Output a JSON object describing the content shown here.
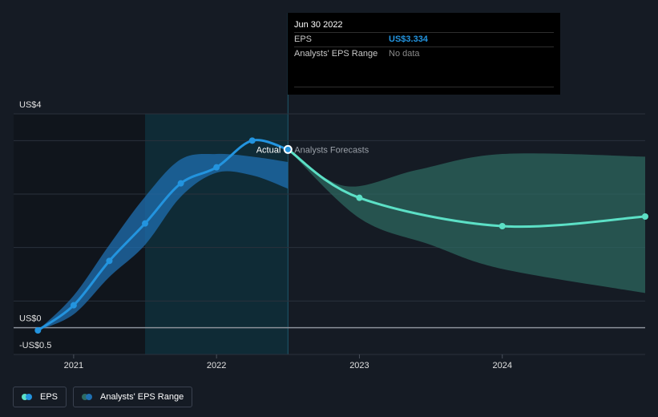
{
  "chart_data": {
    "type": "line",
    "y_ticks": [
      {
        "value": 4,
        "label": "US$4"
      },
      {
        "value": 0,
        "label": "US$0"
      },
      {
        "value": -0.5,
        "label": "-US$0.5"
      }
    ],
    "ylim": [
      -0.5,
      4
    ],
    "x_ticks": [
      {
        "value": 2021.0,
        "label": "2021"
      },
      {
        "value": 2022.0,
        "label": "2022"
      },
      {
        "value": 2023.0,
        "label": "2023"
      },
      {
        "value": 2024.0,
        "label": "2024"
      }
    ],
    "xlim": [
      2020.58,
      2025.0
    ],
    "shaded_periods": [
      {
        "name": "past",
        "from": 2020.58,
        "to": 2021.5
      },
      {
        "name": "recent",
        "from": 2021.5,
        "to": 2022.5
      }
    ],
    "split_label_actual": "Actual",
    "split_label_forecast": "Analysts Forecasts",
    "series": [
      {
        "name": "EPS",
        "color": "#2394df",
        "points": [
          {
            "x": 2020.75,
            "y": -0.05
          },
          {
            "x": 2021.0,
            "y": 0.42
          },
          {
            "x": 2021.25,
            "y": 1.25
          },
          {
            "x": 2021.5,
            "y": 1.95
          },
          {
            "x": 2021.75,
            "y": 2.7
          },
          {
            "x": 2022.0,
            "y": 3.0
          },
          {
            "x": 2022.25,
            "y": 3.5
          },
          {
            "x": 2022.5,
            "y": 3.334
          }
        ]
      },
      {
        "name": "EPS forecast",
        "color": "#5ce0c6",
        "points": [
          {
            "x": 2022.5,
            "y": 3.334
          },
          {
            "x": 2023.0,
            "y": 2.43
          },
          {
            "x": 2024.0,
            "y": 1.9
          },
          {
            "x": 2025.0,
            "y": 2.08
          }
        ]
      }
    ],
    "ranges": [
      {
        "name": "Analysts' EPS Range (past)",
        "color": "#1f6fb0",
        "upper": [
          {
            "x": 2020.75,
            "y": -0.05
          },
          {
            "x": 2021.0,
            "y": 0.6
          },
          {
            "x": 2021.25,
            "y": 1.55
          },
          {
            "x": 2021.5,
            "y": 2.45
          },
          {
            "x": 2021.75,
            "y": 3.15
          },
          {
            "x": 2022.0,
            "y": 3.25
          },
          {
            "x": 2022.25,
            "y": 3.2
          },
          {
            "x": 2022.5,
            "y": 3.1
          }
        ],
        "lower": [
          {
            "x": 2020.75,
            "y": -0.05
          },
          {
            "x": 2021.0,
            "y": 0.25
          },
          {
            "x": 2021.25,
            "y": 0.95
          },
          {
            "x": 2021.5,
            "y": 1.55
          },
          {
            "x": 2021.75,
            "y": 2.45
          },
          {
            "x": 2022.0,
            "y": 2.9
          },
          {
            "x": 2022.25,
            "y": 2.85
          },
          {
            "x": 2022.5,
            "y": 2.6
          }
        ]
      },
      {
        "name": "Analysts' EPS Range (forecast)",
        "color": "#2d6b63",
        "upper": [
          {
            "x": 2022.5,
            "y": 3.334
          },
          {
            "x": 2022.9,
            "y": 2.65
          },
          {
            "x": 2023.4,
            "y": 2.95
          },
          {
            "x": 2024.0,
            "y": 3.25
          },
          {
            "x": 2025.0,
            "y": 3.2
          }
        ],
        "lower": [
          {
            "x": 2022.5,
            "y": 3.334
          },
          {
            "x": 2023.0,
            "y": 2.05
          },
          {
            "x": 2023.5,
            "y": 1.55
          },
          {
            "x": 2024.0,
            "y": 1.1
          },
          {
            "x": 2025.0,
            "y": 0.65
          }
        ]
      }
    ],
    "markers": [
      {
        "x": 2022.5,
        "y": 3.334,
        "highlight": true
      }
    ]
  },
  "tooltip": {
    "date": "Jun 30 2022",
    "rows": [
      {
        "key": "EPS",
        "value": "US$3.334"
      },
      {
        "key": "Analysts' EPS Range",
        "value": "No data"
      }
    ]
  },
  "legend": [
    {
      "label": "EPS",
      "color_a": "#5ce0c6",
      "color_b": "#2394df"
    },
    {
      "label": "Analysts' EPS Range",
      "color_a": "#2d6b63",
      "color_b": "#1f6fb0"
    }
  ]
}
